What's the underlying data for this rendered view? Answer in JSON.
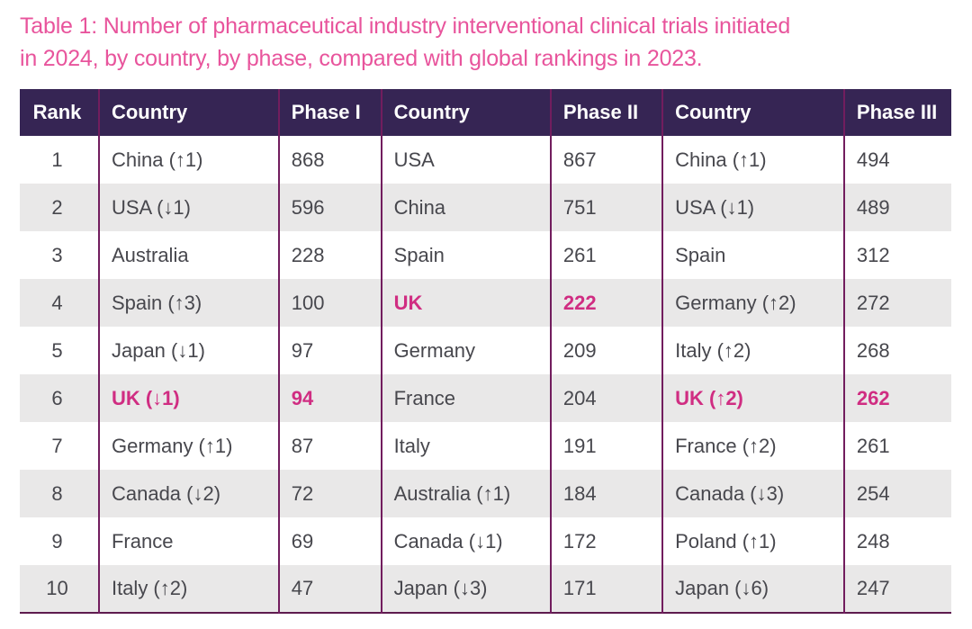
{
  "title": {
    "full": "Table 1: Number of pharmaceutical industry interventional clinical trials initiated in 2024, by country, by phase, compared with global rankings in 2023.",
    "line1": "Table 1: Number of pharmaceutical industry interventional clinical trials initiated",
    "line2": "in 2024, by country, by phase, compared with global rankings in 2023."
  },
  "colors": {
    "title_pink": "#e8549c",
    "highlight_pink": "#d02d82",
    "header_bg": "#362554",
    "header_text": "#ffffff",
    "column_divider": "#721d5e",
    "bottom_border": "#5e1b4e",
    "alt_row_bg": "#e9e8e8",
    "body_text": "#47474d"
  },
  "table": {
    "headers": [
      "Rank",
      "Country",
      "Phase I",
      "Country",
      "Phase II",
      "Country",
      "Phase III"
    ],
    "rows": [
      [
        "1",
        "China (↑1)",
        "868",
        "USA",
        "867",
        "China (↑1)",
        "494"
      ],
      [
        "2",
        "USA (↓1)",
        "596",
        "China",
        "751",
        "USA (↓1)",
        "489"
      ],
      [
        "3",
        "Australia",
        "228",
        "Spain",
        "261",
        "Spain",
        "312"
      ],
      [
        "4",
        "Spain (↑3)",
        "100",
        "UK",
        "222",
        "Germany (↑2)",
        "272"
      ],
      [
        "5",
        "Japan (↓1)",
        "97",
        "Germany",
        "209",
        "Italy (↑2)",
        "268"
      ],
      [
        "6",
        "UK (↓1)",
        "94",
        "France",
        "204",
        "UK (↑2)",
        "262"
      ],
      [
        "7",
        "Germany (↑1)",
        "87",
        "Italy",
        "191",
        "France (↑2)",
        "261"
      ],
      [
        "8",
        "Canada (↓2)",
        "72",
        "Australia (↑1)",
        "184",
        "Canada (↓3)",
        "254"
      ],
      [
        "9",
        "France",
        "69",
        "Canada (↓1)",
        "172",
        "Poland (↑1)",
        "248"
      ],
      [
        "10",
        "Italy (↑2)",
        "47",
        "Japan (↓3)",
        "171",
        "Japan (↓6)",
        "247"
      ]
    ]
  }
}
